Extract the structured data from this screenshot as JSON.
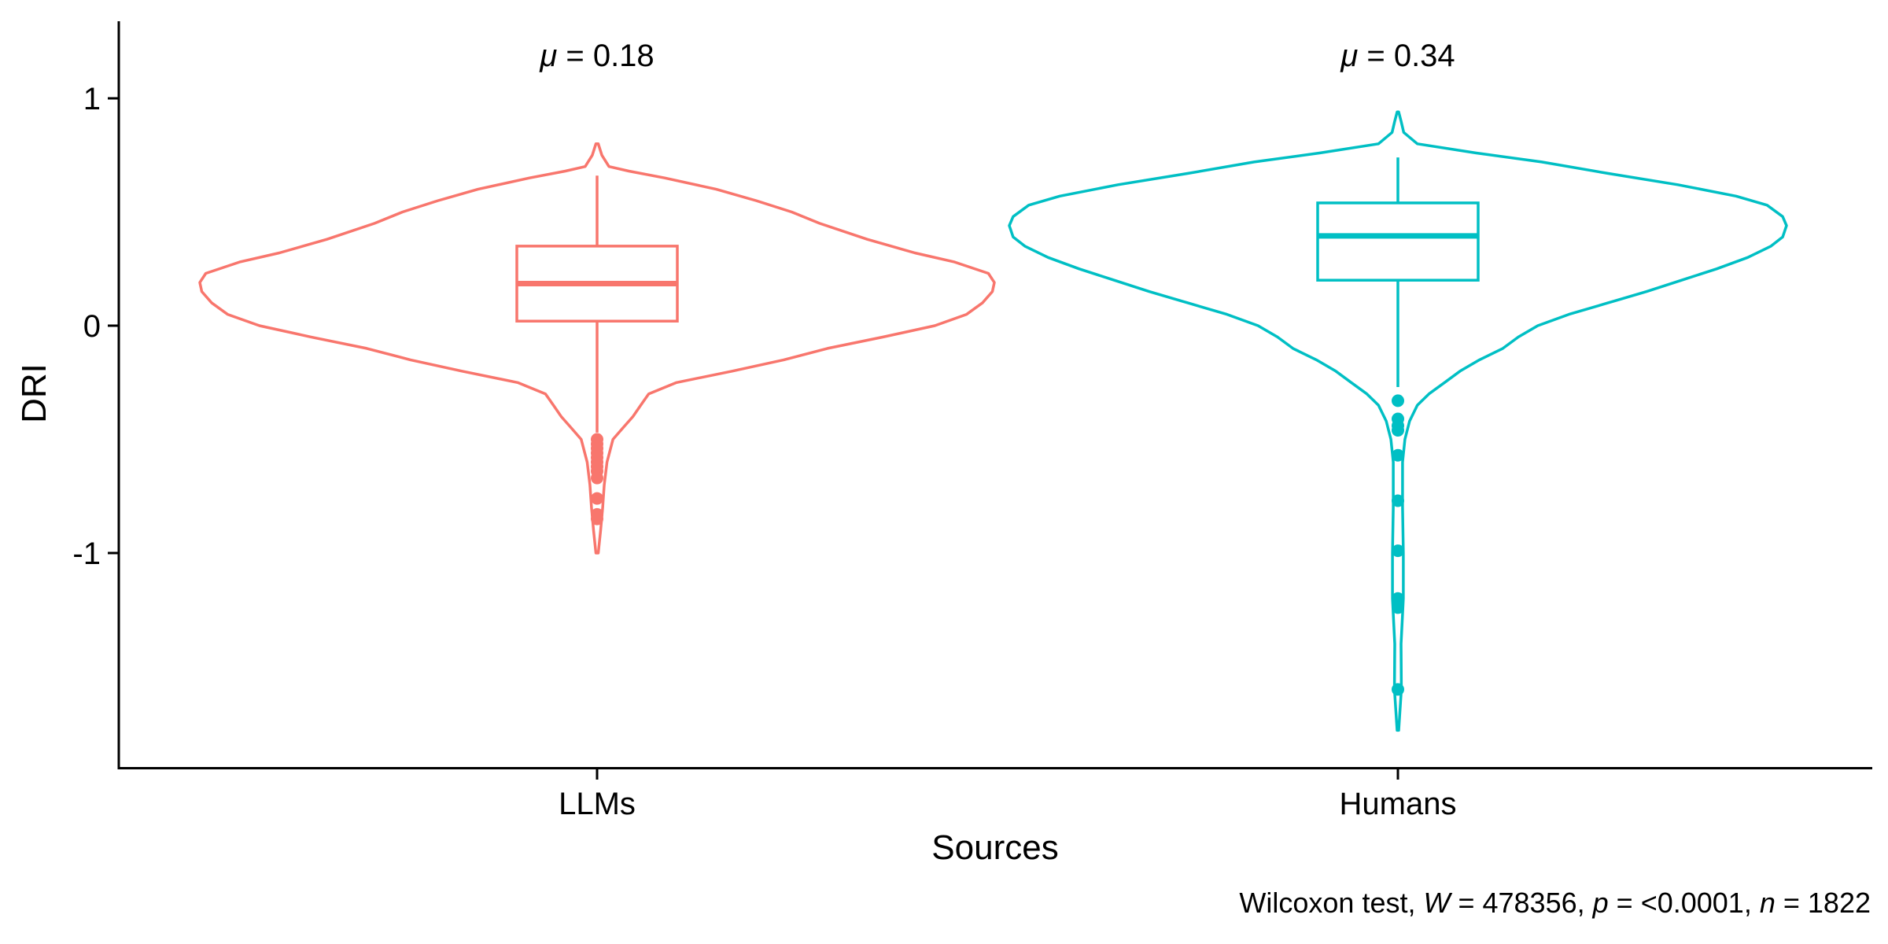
{
  "chart_data": {
    "type": "violin",
    "title": "",
    "xlabel": "Sources",
    "ylabel": "DRI",
    "ylim": [
      -1.8,
      1.35
    ],
    "yticks": [
      {
        "value": 1,
        "label": "1"
      },
      {
        "value": 0,
        "label": "0"
      },
      {
        "value": -1,
        "label": "-1"
      }
    ],
    "grid": false,
    "legend": "none",
    "categories": [
      "LLMs",
      "Humans"
    ],
    "series": [
      {
        "category": "LLMs",
        "color": "#F8766D",
        "mean_label": {
          "symbol": "μ",
          "text": " = 0.18"
        },
        "box": {
          "q1": 0.02,
          "median": 0.185,
          "q3": 0.35,
          "whisker_low": -0.47,
          "whisker_high": 0.66
        },
        "violin_max_density": 1.0,
        "violin": [
          {
            "y": -1.0,
            "w": 0.003
          },
          {
            "y": -0.9,
            "w": 0.009
          },
          {
            "y": -0.8,
            "w": 0.014
          },
          {
            "y": -0.7,
            "w": 0.018
          },
          {
            "y": -0.6,
            "w": 0.025
          },
          {
            "y": -0.5,
            "w": 0.04
          },
          {
            "y": -0.45,
            "w": 0.065
          },
          {
            "y": -0.4,
            "w": 0.09
          },
          {
            "y": -0.35,
            "w": 0.11
          },
          {
            "y": -0.3,
            "w": 0.13
          },
          {
            "y": -0.25,
            "w": 0.2
          },
          {
            "y": -0.2,
            "w": 0.34
          },
          {
            "y": -0.15,
            "w": 0.47
          },
          {
            "y": -0.1,
            "w": 0.58
          },
          {
            "y": -0.05,
            "w": 0.72
          },
          {
            "y": 0.0,
            "w": 0.85
          },
          {
            "y": 0.05,
            "w": 0.93
          },
          {
            "y": 0.1,
            "w": 0.97
          },
          {
            "y": 0.15,
            "w": 0.995
          },
          {
            "y": 0.19,
            "w": 1.0
          },
          {
            "y": 0.23,
            "w": 0.985
          },
          {
            "y": 0.28,
            "w": 0.9
          },
          {
            "y": 0.32,
            "w": 0.8
          },
          {
            "y": 0.38,
            "w": 0.68
          },
          {
            "y": 0.45,
            "w": 0.56
          },
          {
            "y": 0.5,
            "w": 0.49
          },
          {
            "y": 0.55,
            "w": 0.4
          },
          {
            "y": 0.6,
            "w": 0.3
          },
          {
            "y": 0.65,
            "w": 0.17
          },
          {
            "y": 0.68,
            "w": 0.08
          },
          {
            "y": 0.7,
            "w": 0.03
          },
          {
            "y": 0.75,
            "w": 0.012
          },
          {
            "y": 0.8,
            "w": 0.003
          }
        ],
        "outliers": [
          -0.5,
          -0.52,
          -0.54,
          -0.56,
          -0.58,
          -0.6,
          -0.62,
          -0.64,
          -0.67,
          -0.76,
          -0.83,
          -0.85
        ]
      },
      {
        "category": "Humans",
        "color": "#00BFC4",
        "mean_label": {
          "symbol": "μ",
          "text": " = 0.34"
        },
        "box": {
          "q1": 0.2,
          "median": 0.395,
          "q3": 0.54,
          "whisker_low": -0.27,
          "whisker_high": 0.74
        },
        "violin_max_density": 1.0,
        "violin": [
          {
            "y": -1.78,
            "w": 0.002
          },
          {
            "y": -1.6,
            "w": 0.009
          },
          {
            "y": -1.4,
            "w": 0.008
          },
          {
            "y": -1.2,
            "w": 0.014
          },
          {
            "y": -1.0,
            "w": 0.014
          },
          {
            "y": -0.8,
            "w": 0.012
          },
          {
            "y": -0.6,
            "w": 0.012
          },
          {
            "y": -0.5,
            "w": 0.018
          },
          {
            "y": -0.42,
            "w": 0.03
          },
          {
            "y": -0.35,
            "w": 0.05
          },
          {
            "y": -0.3,
            "w": 0.08
          },
          {
            "y": -0.25,
            "w": 0.12
          },
          {
            "y": -0.2,
            "w": 0.16
          },
          {
            "y": -0.15,
            "w": 0.21
          },
          {
            "y": -0.1,
            "w": 0.27
          },
          {
            "y": -0.05,
            "w": 0.31
          },
          {
            "y": 0.0,
            "w": 0.36
          },
          {
            "y": 0.05,
            "w": 0.44
          },
          {
            "y": 0.1,
            "w": 0.54
          },
          {
            "y": 0.15,
            "w": 0.64
          },
          {
            "y": 0.2,
            "w": 0.73
          },
          {
            "y": 0.25,
            "w": 0.82
          },
          {
            "y": 0.3,
            "w": 0.9
          },
          {
            "y": 0.35,
            "w": 0.96
          },
          {
            "y": 0.39,
            "w": 0.99
          },
          {
            "y": 0.44,
            "w": 1.0
          },
          {
            "y": 0.48,
            "w": 0.99
          },
          {
            "y": 0.53,
            "w": 0.95
          },
          {
            "y": 0.57,
            "w": 0.87
          },
          {
            "y": 0.62,
            "w": 0.72
          },
          {
            "y": 0.67,
            "w": 0.54
          },
          {
            "y": 0.72,
            "w": 0.37
          },
          {
            "y": 0.76,
            "w": 0.2
          },
          {
            "y": 0.8,
            "w": 0.05
          },
          {
            "y": 0.85,
            "w": 0.015
          },
          {
            "y": 0.9,
            "w": 0.008
          },
          {
            "y": 0.94,
            "w": 0.002
          }
        ],
        "outliers": [
          -0.33,
          -0.41,
          -0.44,
          -0.46,
          -0.57,
          -0.77,
          -0.99,
          -1.2,
          -1.24,
          -1.6
        ]
      }
    ],
    "caption": [
      {
        "text": "Wilcoxon test, ",
        "italic": false
      },
      {
        "text": "W",
        "italic": true
      },
      {
        "text": " = 478356, ",
        "italic": false
      },
      {
        "text": "p",
        "italic": true
      },
      {
        "text": " = <0.0001, ",
        "italic": false
      },
      {
        "text": "n",
        "italic": true
      },
      {
        "text": " = 1822",
        "italic": false
      }
    ]
  }
}
